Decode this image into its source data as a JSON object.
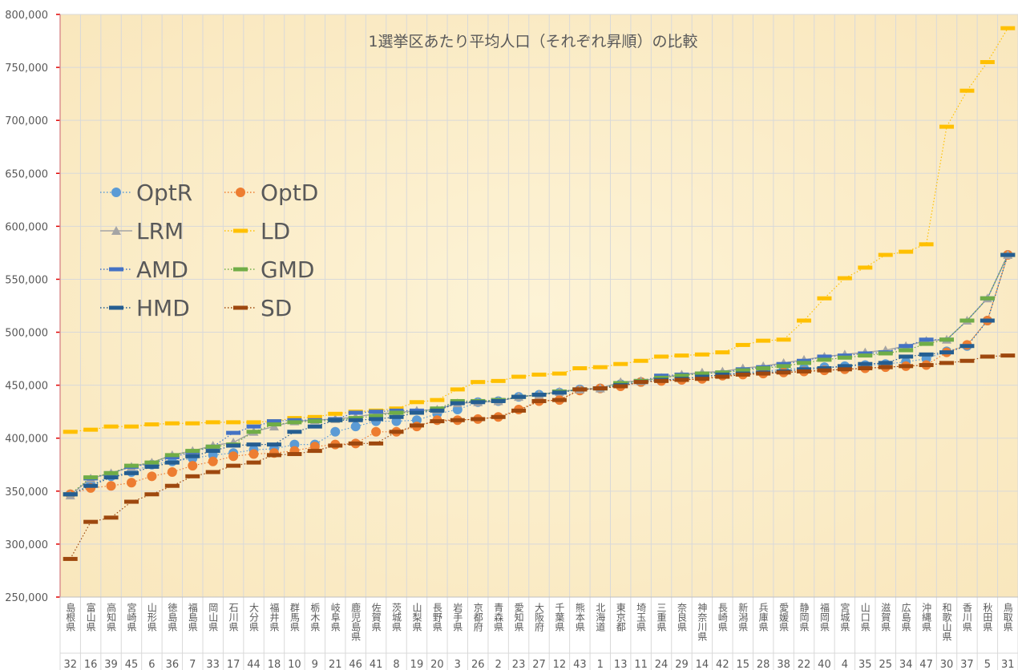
{
  "chart_data": {
    "type": "line",
    "title": "1選挙区あたり平均人口（それぞれ昇順）の比較",
    "categories": [
      "島根県",
      "富山県",
      "高知県",
      "宮崎県",
      "山形県",
      "徳島県",
      "福島県",
      "岡山県",
      "石川県",
      "大分県",
      "福井県",
      "群馬県",
      "栃木県",
      "岐阜県",
      "鹿児島県",
      "佐賀県",
      "茨城県",
      "山梨県",
      "長野県",
      "岩手県",
      "京都府",
      "青森県",
      "愛知県",
      "大阪府",
      "千葉県",
      "熊本県",
      "北海道",
      "東京都",
      "埼玉県",
      "三重県",
      "奈良県",
      "神奈川県",
      "長崎県",
      "新潟県",
      "兵庫県",
      "愛媛県",
      "静岡県",
      "福岡県",
      "宮城県",
      "山口県",
      "滋賀県",
      "広島県",
      "沖縄県",
      "和歌山県",
      "香川県",
      "秋田県",
      "鳥取県"
    ],
    "category_numbers": [
      32,
      16,
      39,
      45,
      6,
      36,
      7,
      33,
      17,
      44,
      18,
      10,
      9,
      21,
      46,
      41,
      8,
      19,
      20,
      3,
      26,
      2,
      23,
      27,
      12,
      43,
      1,
      13,
      11,
      24,
      29,
      14,
      42,
      15,
      28,
      38,
      22,
      40,
      4,
      35,
      25,
      34,
      47,
      30,
      37,
      5,
      31
    ],
    "ylim": [
      250000,
      800000
    ],
    "yticks": [
      {
        "value": 250000,
        "label": "250,000"
      },
      {
        "value": 300000,
        "label": "300,000"
      },
      {
        "value": 350000,
        "label": "350,000"
      },
      {
        "value": 400000,
        "label": "400,000"
      },
      {
        "value": 450000,
        "label": "450,000"
      },
      {
        "value": 500000,
        "label": "500,000"
      },
      {
        "value": 550000,
        "label": "550,000"
      },
      {
        "value": 600000,
        "label": "600,000"
      },
      {
        "value": 650000,
        "label": "650,000"
      },
      {
        "value": 700000,
        "label": "700,000"
      },
      {
        "value": 750000,
        "label": "750,000"
      },
      {
        "value": 800000,
        "label": "800,000"
      }
    ],
    "grid": true,
    "series": [
      {
        "name": "OptR",
        "color": "#5b9bd5",
        "marker": "circle",
        "line": "dotted",
        "values": [
          347000,
          356000,
          364000,
          368000,
          375000,
          378000,
          381000,
          384000,
          386000,
          389000,
          390000,
          394000,
          394000,
          406000,
          411000,
          416000,
          416000,
          417000,
          423000,
          427000,
          434000,
          435000,
          439000,
          441000,
          443000,
          446000,
          447000,
          451000,
          453000,
          455000,
          456000,
          458000,
          460000,
          462000,
          463000,
          465000,
          466000,
          467000,
          468000,
          469000,
          470000,
          472000,
          475000,
          482000,
          487000,
          511000,
          573000
        ]
      },
      {
        "name": "OptD",
        "color": "#ed7d31",
        "marker": "circle",
        "line": "dotted",
        "values": [
          347000,
          353000,
          355000,
          358000,
          364000,
          368000,
          374000,
          378000,
          383000,
          385000,
          386000,
          388000,
          392000,
          394000,
          395000,
          406000,
          406000,
          411000,
          417000,
          417000,
          418000,
          420000,
          427000,
          435000,
          436000,
          445000,
          447000,
          449000,
          453000,
          454000,
          455000,
          456000,
          459000,
          460000,
          461000,
          462000,
          463000,
          464000,
          465000,
          466000,
          467000,
          468000,
          469000,
          481000,
          488000,
          511000,
          573000
        ]
      },
      {
        "name": "LRM",
        "color": "#a5a5a5",
        "marker": "triangle",
        "line": "solid",
        "values": [
          346000,
          362000,
          367000,
          373000,
          377000,
          384000,
          388000,
          393000,
          396000,
          406000,
          411000,
          416000,
          417000,
          418000,
          420000,
          423000,
          424000,
          426000,
          427000,
          433000,
          434000,
          435000,
          439000,
          441000,
          444000,
          446000,
          447000,
          453000,
          454000,
          457000,
          460000,
          462000,
          463000,
          466000,
          468000,
          471000,
          474000,
          477000,
          479000,
          481000,
          483000,
          487000,
          492000,
          493000,
          511000,
          532000,
          573000
        ]
      },
      {
        "name": "LD",
        "color": "#ffc000",
        "marker": "dash",
        "line": "dotted",
        "values": [
          406000,
          408000,
          411000,
          411000,
          413000,
          414000,
          414000,
          415000,
          415000,
          415000,
          416000,
          419000,
          420000,
          423000,
          425000,
          426000,
          428000,
          434000,
          436000,
          446000,
          453000,
          454000,
          458000,
          460000,
          461000,
          466000,
          467000,
          470000,
          473000,
          477000,
          478000,
          479000,
          481000,
          488000,
          492000,
          493000,
          511000,
          532000,
          551000,
          561000,
          573000,
          576000,
          583000,
          694000,
          728000,
          755000,
          787000
        ]
      },
      {
        "name": "AMD",
        "color": "#4472c4",
        "marker": "dash",
        "line": "dotted",
        "values": [
          347000,
          362000,
          367000,
          373000,
          376000,
          382000,
          387000,
          392000,
          405000,
          411000,
          416000,
          417000,
          417000,
          418000,
          424000,
          425000,
          426000,
          426000,
          427000,
          434000,
          435000,
          436000,
          439000,
          441000,
          444000,
          446000,
          447000,
          452000,
          454000,
          459000,
          460000,
          461000,
          462000,
          465000,
          467000,
          470000,
          473000,
          477000,
          478000,
          480000,
          481000,
          487000,
          493000,
          493000,
          511000,
          532000,
          573000
        ]
      },
      {
        "name": "GMD",
        "color": "#70ad47",
        "marker": "dash",
        "line": "dotted",
        "values": [
          347000,
          363000,
          367000,
          374000,
          377000,
          384000,
          388000,
          392000,
          394000,
          406000,
          413000,
          415000,
          416000,
          417000,
          419000,
          421000,
          424000,
          424000,
          428000,
          435000,
          435000,
          436000,
          439000,
          441000,
          444000,
          446000,
          447000,
          452000,
          454000,
          457000,
          459000,
          461000,
          462000,
          464000,
          466000,
          468000,
          471000,
          474000,
          476000,
          478000,
          480000,
          483000,
          489000,
          493000,
          511000,
          532000,
          573000
        ]
      },
      {
        "name": "HMD",
        "color": "#255e91",
        "marker": "dash",
        "line": "dotted",
        "values": [
          347000,
          355000,
          363000,
          367000,
          373000,
          377000,
          383000,
          388000,
          393000,
          394000,
          394000,
          406000,
          411000,
          417000,
          417000,
          418000,
          420000,
          424000,
          426000,
          433000,
          434000,
          435000,
          439000,
          441000,
          443000,
          446000,
          447000,
          450000,
          453000,
          455000,
          456000,
          458000,
          460000,
          461000,
          462000,
          463000,
          465000,
          466000,
          468000,
          470000,
          471000,
          477000,
          479000,
          481000,
          487000,
          511000,
          573000
        ]
      },
      {
        "name": "SD",
        "color": "#9e480e",
        "marker": "dash",
        "line": "dotted",
        "values": [
          286000,
          321000,
          325000,
          340000,
          347000,
          355000,
          364000,
          368000,
          374000,
          377000,
          384000,
          385000,
          388000,
          393000,
          395000,
          395000,
          406000,
          412000,
          416000,
          417000,
          418000,
          420000,
          426000,
          435000,
          436000,
          446000,
          447000,
          449000,
          453000,
          454000,
          455000,
          456000,
          458000,
          460000,
          461000,
          462000,
          463000,
          464000,
          465000,
          466000,
          467000,
          468000,
          469000,
          471000,
          473000,
          477000,
          478000
        ]
      }
    ]
  }
}
